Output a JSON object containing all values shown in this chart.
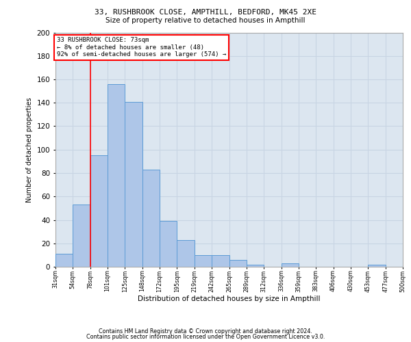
{
  "title1": "33, RUSHBROOK CLOSE, AMPTHILL, BEDFORD, MK45 2XE",
  "title2": "Size of property relative to detached houses in Ampthill",
  "xlabel": "Distribution of detached houses by size in Ampthill",
  "ylabel": "Number of detached properties",
  "bar_heights": [
    11,
    53,
    95,
    156,
    141,
    83,
    39,
    23,
    10,
    10,
    6,
    2,
    0,
    3,
    0,
    0,
    0,
    0,
    2,
    0
  ],
  "bin_labels": [
    "31sqm",
    "54sqm",
    "78sqm",
    "101sqm",
    "125sqm",
    "148sqm",
    "172sqm",
    "195sqm",
    "219sqm",
    "242sqm",
    "265sqm",
    "289sqm",
    "312sqm",
    "336sqm",
    "359sqm",
    "383sqm",
    "406sqm",
    "430sqm",
    "453sqm",
    "477sqm",
    "500sqm"
  ],
  "bar_color": "#aec6e8",
  "bar_edge_color": "#5b9bd5",
  "grid_color": "#c8d4e3",
  "bg_color": "#dce6f0",
  "vline_color": "red",
  "vline_x": 2,
  "annotation_line1": "33 RUSHBROOK CLOSE: 73sqm",
  "annotation_line2": "← 8% of detached houses are smaller (48)",
  "annotation_line3": "92% of semi-detached houses are larger (574) →",
  "footer1": "Contains HM Land Registry data © Crown copyright and database right 2024.",
  "footer2": "Contains public sector information licensed under the Open Government Licence v3.0.",
  "ylim": [
    0,
    200
  ],
  "yticks": [
    0,
    20,
    40,
    60,
    80,
    100,
    120,
    140,
    160,
    180,
    200
  ]
}
